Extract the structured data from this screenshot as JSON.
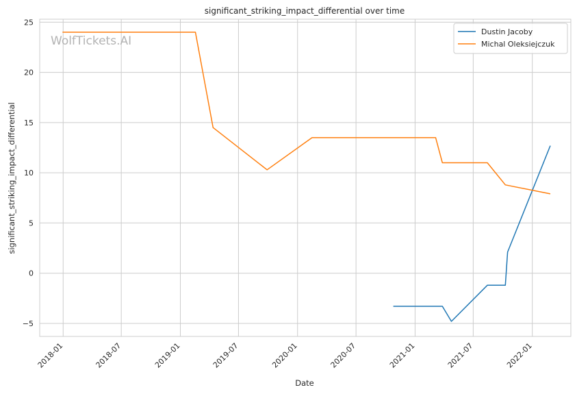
{
  "watermark": "WolfTickets.AI",
  "chart_data": {
    "type": "line",
    "title": "significant_striking_impact_differential over time",
    "xlabel": "Date",
    "ylabel": "significant_striking_impact_differential",
    "x_ticks": [
      "2018-01",
      "2018-07",
      "2019-01",
      "2019-07",
      "2020-01",
      "2020-07",
      "2021-01",
      "2021-07",
      "2022-01"
    ],
    "y_ticks": [
      -5,
      0,
      5,
      10,
      15,
      20,
      25
    ],
    "xlim": [
      "2017-10-20",
      "2022-05-01"
    ],
    "ylim": [
      -6.3,
      25.3
    ],
    "grid": true,
    "legend_position": "top-right",
    "series": [
      {
        "name": "Dustin Jacoby",
        "color": "#1f77b4",
        "points": [
          {
            "x": "2020-10-25",
            "y": -3.3
          },
          {
            "x": "2021-03-27",
            "y": -3.3
          },
          {
            "x": "2021-04-24",
            "y": -4.8
          },
          {
            "x": "2021-08-14",
            "y": -1.2
          },
          {
            "x": "2021-10-09",
            "y": -1.2
          },
          {
            "x": "2021-10-16",
            "y": 2.1
          },
          {
            "x": "2022-02-26",
            "y": 12.7
          }
        ]
      },
      {
        "name": "Michal Oleksiejczuk",
        "color": "#ff7f0e",
        "points": [
          {
            "x": "2017-12-30",
            "y": 24.0
          },
          {
            "x": "2019-02-17",
            "y": 24.0
          },
          {
            "x": "2019-04-13",
            "y": 14.5
          },
          {
            "x": "2019-09-28",
            "y": 10.3
          },
          {
            "x": "2020-02-15",
            "y": 13.5
          },
          {
            "x": "2021-03-06",
            "y": 13.5
          },
          {
            "x": "2021-03-27",
            "y": 11.0
          },
          {
            "x": "2021-08-14",
            "y": 11.0
          },
          {
            "x": "2021-10-09",
            "y": 8.8
          },
          {
            "x": "2022-02-26",
            "y": 7.9
          }
        ]
      }
    ]
  }
}
